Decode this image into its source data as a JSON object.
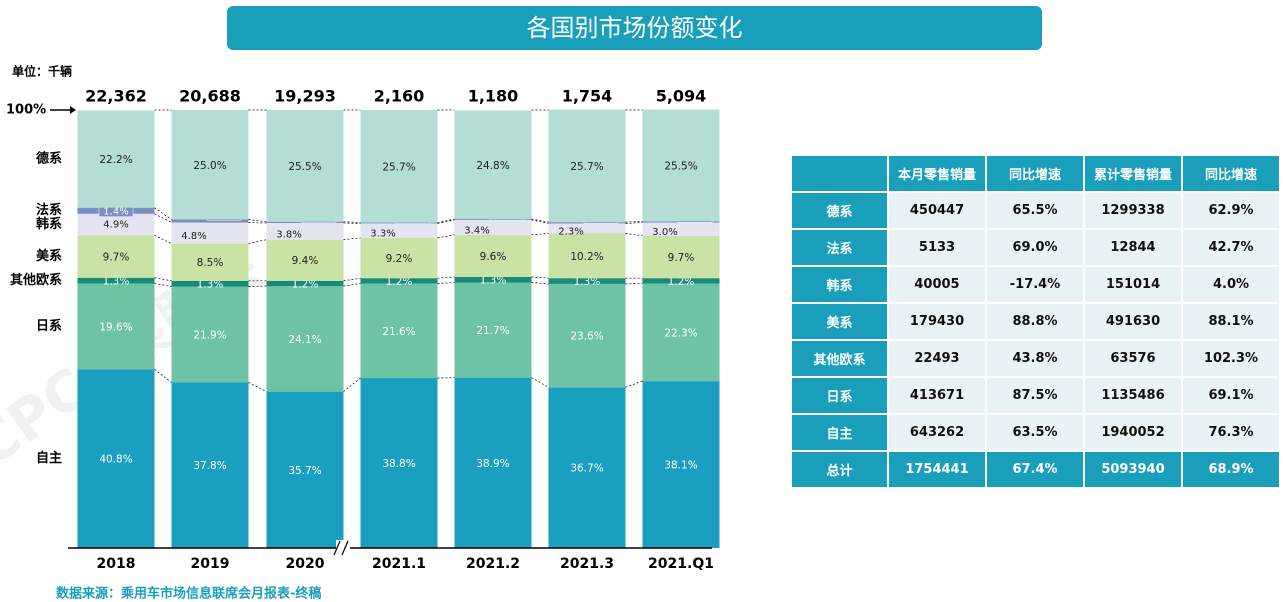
{
  "title": "各国别市场份额变化",
  "unit": "单位：千辆",
  "source": "数据来源：乘用车市场信息联席会月报表-终稿",
  "watermark": "CPCA乘联会",
  "chart_data": {
    "type": "stacked_bar",
    "annotation": "100%",
    "categories": [
      "2018",
      "2019",
      "2020",
      "2021.1",
      "2021.2",
      "2021.3",
      "2021.Q1"
    ],
    "totals": {
      "values": [
        22362,
        20688,
        19293,
        2160,
        1180,
        1754,
        5094
      ],
      "value_labels": [
        "22,362",
        "20,688",
        "19,293",
        "2,160",
        "1,180",
        "1,754",
        "5,094"
      ]
    },
    "ylim": [
      0,
      100
    ],
    "series": [
      {
        "name": "自主",
        "color": "#1b9fc0",
        "values": [
          40.8,
          37.8,
          35.7,
          38.8,
          38.9,
          36.7,
          38.1
        ],
        "value_labels": [
          "40.8%",
          "37.8%",
          "35.7%",
          "38.8%",
          "38.9%",
          "36.7%",
          "38.1%"
        ]
      },
      {
        "name": "日系",
        "color": "#6dc3a3",
        "values": [
          19.6,
          21.9,
          24.1,
          21.6,
          21.7,
          23.6,
          22.3
        ],
        "value_labels": [
          "19.6%",
          "21.9%",
          "24.1%",
          "21.6%",
          "21.7%",
          "23.6%",
          "22.3%"
        ]
      },
      {
        "name": "其他欧系",
        "color": "#178a78",
        "values": [
          1.3,
          1.3,
          1.2,
          1.2,
          1.3,
          1.3,
          1.2
        ],
        "value_labels": [
          "1.3%",
          "1.3%",
          "1.2%",
          "1.2%",
          "1.3%",
          "1.3%",
          "1.2%"
        ]
      },
      {
        "name": "美系",
        "color": "#c8e3a4",
        "values": [
          9.7,
          8.5,
          9.4,
          9.2,
          9.6,
          10.2,
          9.7
        ],
        "value_labels": [
          "9.7%",
          "8.5%",
          "9.4%",
          "9.2%",
          "9.6%",
          "10.2%",
          "9.7%"
        ]
      },
      {
        "name": "韩系",
        "color": "#e4e5f0",
        "values": [
          4.9,
          4.8,
          3.8,
          3.3,
          3.4,
          2.3,
          3.0
        ],
        "value_labels": [
          "4.9%",
          "4.8%",
          "3.8%",
          "3.3%",
          "3.4%",
          "2.3%",
          "3.0%"
        ]
      },
      {
        "name": "法系",
        "color": "#7a8ec4",
        "values": [
          1.4,
          0.7,
          0.3,
          0.2,
          0.2,
          0.3,
          0.3
        ],
        "value_labels": [
          "1.4%",
          "0.7%",
          "0.3%",
          "0.2%",
          "0.2%",
          "0.3%",
          "0.3%"
        ]
      },
      {
        "name": "德系",
        "color": "#b4ddd5",
        "values": [
          22.2,
          25.0,
          25.5,
          25.7,
          24.8,
          25.7,
          25.5
        ],
        "value_labels": [
          "22.2%",
          "25.0%",
          "25.5%",
          "25.7%",
          "24.8%",
          "25.7%",
          "25.5%"
        ]
      }
    ]
  },
  "table": {
    "columns": [
      "本月零售销量",
      "同比增速",
      "累计零售销量",
      "同比增速"
    ],
    "rows": [
      [
        "德系",
        "450447",
        "65.5%",
        "1299338",
        "62.9%"
      ],
      [
        "法系",
        "5133",
        "69.0%",
        "12844",
        "42.7%"
      ],
      [
        "韩系",
        "40005",
        "-17.4%",
        "151014",
        "4.0%"
      ],
      [
        "美系",
        "179430",
        "88.8%",
        "491630",
        "88.1%"
      ],
      [
        "其他欧系",
        "22493",
        "43.8%",
        "63576",
        "102.3%"
      ],
      [
        "日系",
        "413671",
        "87.5%",
        "1135486",
        "69.1%"
      ],
      [
        "自主",
        "643262",
        "63.5%",
        "1940052",
        "76.3%"
      ],
      [
        "总计",
        "1754441",
        "67.4%",
        "5093940",
        "68.9%"
      ]
    ]
  }
}
